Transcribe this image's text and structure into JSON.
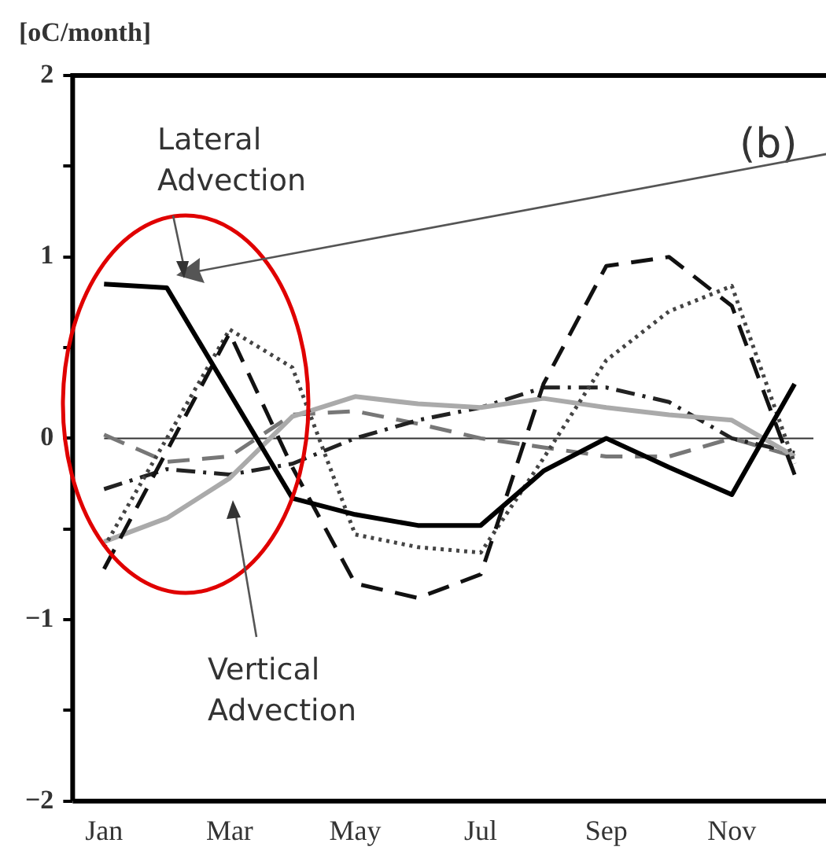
{
  "chart_data": {
    "type": "line",
    "ylabel": "[oC/month]",
    "categories": [
      "Jan",
      null,
      "Mar",
      null,
      "May",
      null,
      "Jul",
      null,
      "Sep",
      null,
      "Nov",
      null
    ],
    "series": [
      {
        "color": "#000000",
        "line_style": "solid",
        "values": [
          0.85,
          0.83,
          0.25,
          -0.33,
          -0.42,
          -0.48,
          -0.48,
          -0.18,
          0,
          -0.16,
          -0.31,
          0.3
        ]
      },
      {
        "color": "#111111",
        "line_style": "dashed",
        "values": [
          -0.72,
          -0.07,
          0.58,
          -0.16,
          -0.8,
          -0.88,
          -0.75,
          0.3,
          0.95,
          1.0,
          0.73,
          -0.2
        ]
      },
      {
        "color": "#444444",
        "line_style": "dotted",
        "values": [
          -0.6,
          0,
          0.6,
          0.39,
          -0.53,
          -0.6,
          -0.63,
          -0.11,
          0.43,
          0.7,
          0.84,
          -0.14
        ]
      },
      {
        "color": "#aaaaaa",
        "line_style": "solid",
        "values": [
          -0.57,
          -0.44,
          -0.22,
          0.12,
          0.23,
          0.19,
          0.17,
          0.22,
          0.17,
          0.13,
          0.1,
          -0.1
        ]
      },
      {
        "color": "#222222",
        "line_style": "dashdot",
        "values": [
          -0.28,
          -0.17,
          -0.2,
          -0.14,
          0.0,
          0.1,
          0.17,
          0.28,
          0.28,
          0.2,
          0.0,
          -0.08
        ]
      },
      {
        "color": "#777777",
        "line_style": "dashed",
        "values": [
          0.02,
          -0.13,
          -0.1,
          0.13,
          0.15,
          0.08,
          0,
          -0.05,
          -0.1,
          -0.1,
          0,
          -0.1
        ]
      }
    ],
    "ylim": [
      -2,
      2
    ],
    "yticks": [
      -2,
      {
        "value": -1.5,
        "label": null
      },
      -1,
      {
        "value": -0.5,
        "label": null
      },
      0,
      {
        "value": 0.5,
        "label": null
      },
      1,
      {
        "value": 1.5,
        "label": null
      },
      2
    ],
    "ref_lines": [
      {
        "axis": "y",
        "value": 0,
        "color": "#333333"
      }
    ],
    "annotations": [
      "Lateral\nAdvection",
      "Vertical\nAdvection",
      "(b)"
    ],
    "grid": false,
    "legend": false,
    "marker": "none"
  }
}
